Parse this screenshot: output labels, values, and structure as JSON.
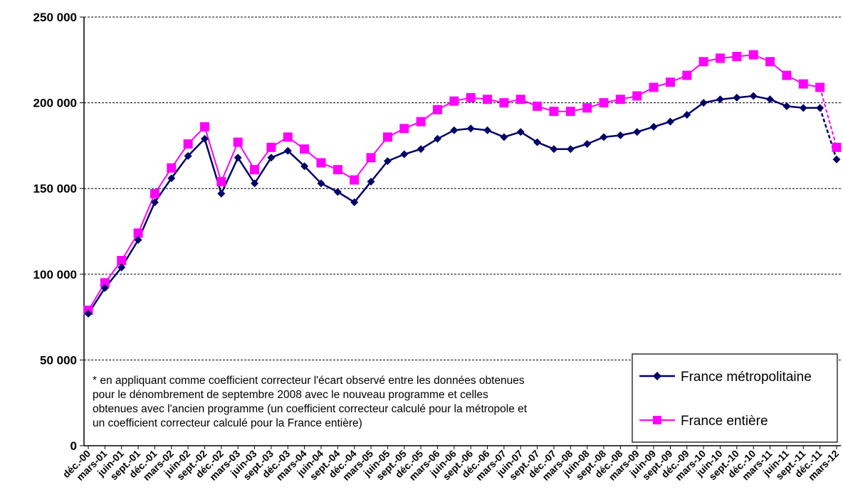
{
  "chart_data": {
    "type": "line",
    "title": "",
    "xlabel": "",
    "ylabel": "",
    "ylim": [
      0,
      250000
    ],
    "yticks": [
      0,
      50000,
      100000,
      150000,
      200000,
      250000
    ],
    "ytick_labels": [
      "0",
      "50 000",
      "100 000",
      "150 000",
      "200 000",
      "250 000"
    ],
    "grid": "horizontal dashed",
    "legend_position": "bottom-right",
    "categories": [
      "déc.-00",
      "mars-01",
      "juin-01",
      "sept.-01",
      "déc.-01",
      "mars-02",
      "juin-02",
      "sept.-02",
      "déc.-02",
      "mars-03",
      "juin-03",
      "sept.-03",
      "déc.-03",
      "mars-04",
      "juin-04",
      "sept.-04",
      "déc.-04",
      "mars-05",
      "juin-05",
      "sept.-05",
      "déc.-05",
      "mars-06",
      "juin-06",
      "sept.-06",
      "déc.-06",
      "mars-07",
      "juin-07",
      "sept.-07",
      "déc.-07",
      "mars-08",
      "juin-08",
      "sept.-08",
      "déc.-08",
      "mars-09",
      "juin-09",
      "sept.-09",
      "déc.-09",
      "mars-10",
      "juin-10",
      "sept.-10",
      "déc.-10",
      "mars-11",
      "juin-11",
      "sept.-11",
      "déc.-11",
      "mars-12"
    ],
    "series": [
      {
        "name": "France métropolitaine",
        "color": "#000066",
        "marker": "diamond",
        "values": [
          77000,
          92000,
          104000,
          120000,
          142000,
          156000,
          169000,
          179000,
          147000,
          168000,
          153000,
          168000,
          172000,
          163000,
          153000,
          148000,
          142000,
          154000,
          166000,
          170000,
          173000,
          179000,
          184000,
          185000,
          184000,
          180000,
          183000,
          177000,
          173000,
          173000,
          176000,
          180000,
          181000,
          183000,
          186000,
          189000,
          193000,
          200000,
          202000,
          203000,
          204000,
          202000,
          198000,
          197000,
          197000,
          167000
        ]
      },
      {
        "name": "France entière",
        "color": "#ff00ff",
        "marker": "square",
        "values": [
          79000,
          95000,
          108000,
          124000,
          147000,
          162000,
          176000,
          186000,
          154000,
          177000,
          161000,
          174000,
          180000,
          173000,
          165000,
          161000,
          155000,
          168000,
          180000,
          185000,
          189000,
          196000,
          201000,
          203000,
          202000,
          200000,
          202000,
          198000,
          195000,
          195000,
          197000,
          200000,
          202000,
          204000,
          209000,
          212000,
          216000,
          224000,
          226000,
          227000,
          228000,
          224000,
          216000,
          211000,
          209000,
          174000
        ]
      }
    ],
    "note_lines": [
      "* en appliquant comme coefficient correcteur l'écart observé entre les données obtenues",
      "pour le dénombrement de septembre 2008 avec le nouveau programme et celles",
      "obtenues avec l'ancien programme (un coefficient correcteur calculé pour la métropole et",
      "un coefficient correcteur calculé pour la France entière)"
    ]
  }
}
